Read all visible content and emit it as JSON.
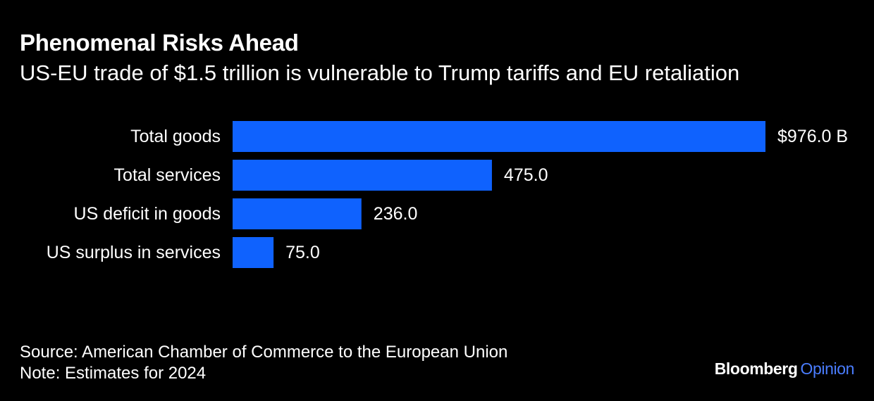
{
  "header": {
    "title": "Phenomenal Risks Ahead",
    "subtitle": "US-EU trade of $1.5 trillion is vulnerable to Trump tariffs and EU retaliation"
  },
  "chart_data": {
    "type": "bar",
    "orientation": "horizontal",
    "categories": [
      "Total goods",
      "Total services",
      "US deficit in goods",
      "US surplus in services"
    ],
    "values": [
      976.0,
      475.0,
      236.0,
      75.0
    ],
    "data_labels": [
      "$976.0 B",
      "475.0",
      "236.0",
      "75.0"
    ],
    "bar_color": "#0F62FE",
    "xlim": [
      0,
      976.0
    ],
    "grid": false,
    "legend": "none"
  },
  "footer": {
    "source": "Source: American Chamber of Commerce to the European Union",
    "note": "Note: Estimates for 2024"
  },
  "branding": {
    "name": "Bloomberg",
    "section": "Opinion",
    "section_color": "#4A7DFF"
  },
  "colors": {
    "background": "#000000",
    "text": "#FFFFFF"
  }
}
